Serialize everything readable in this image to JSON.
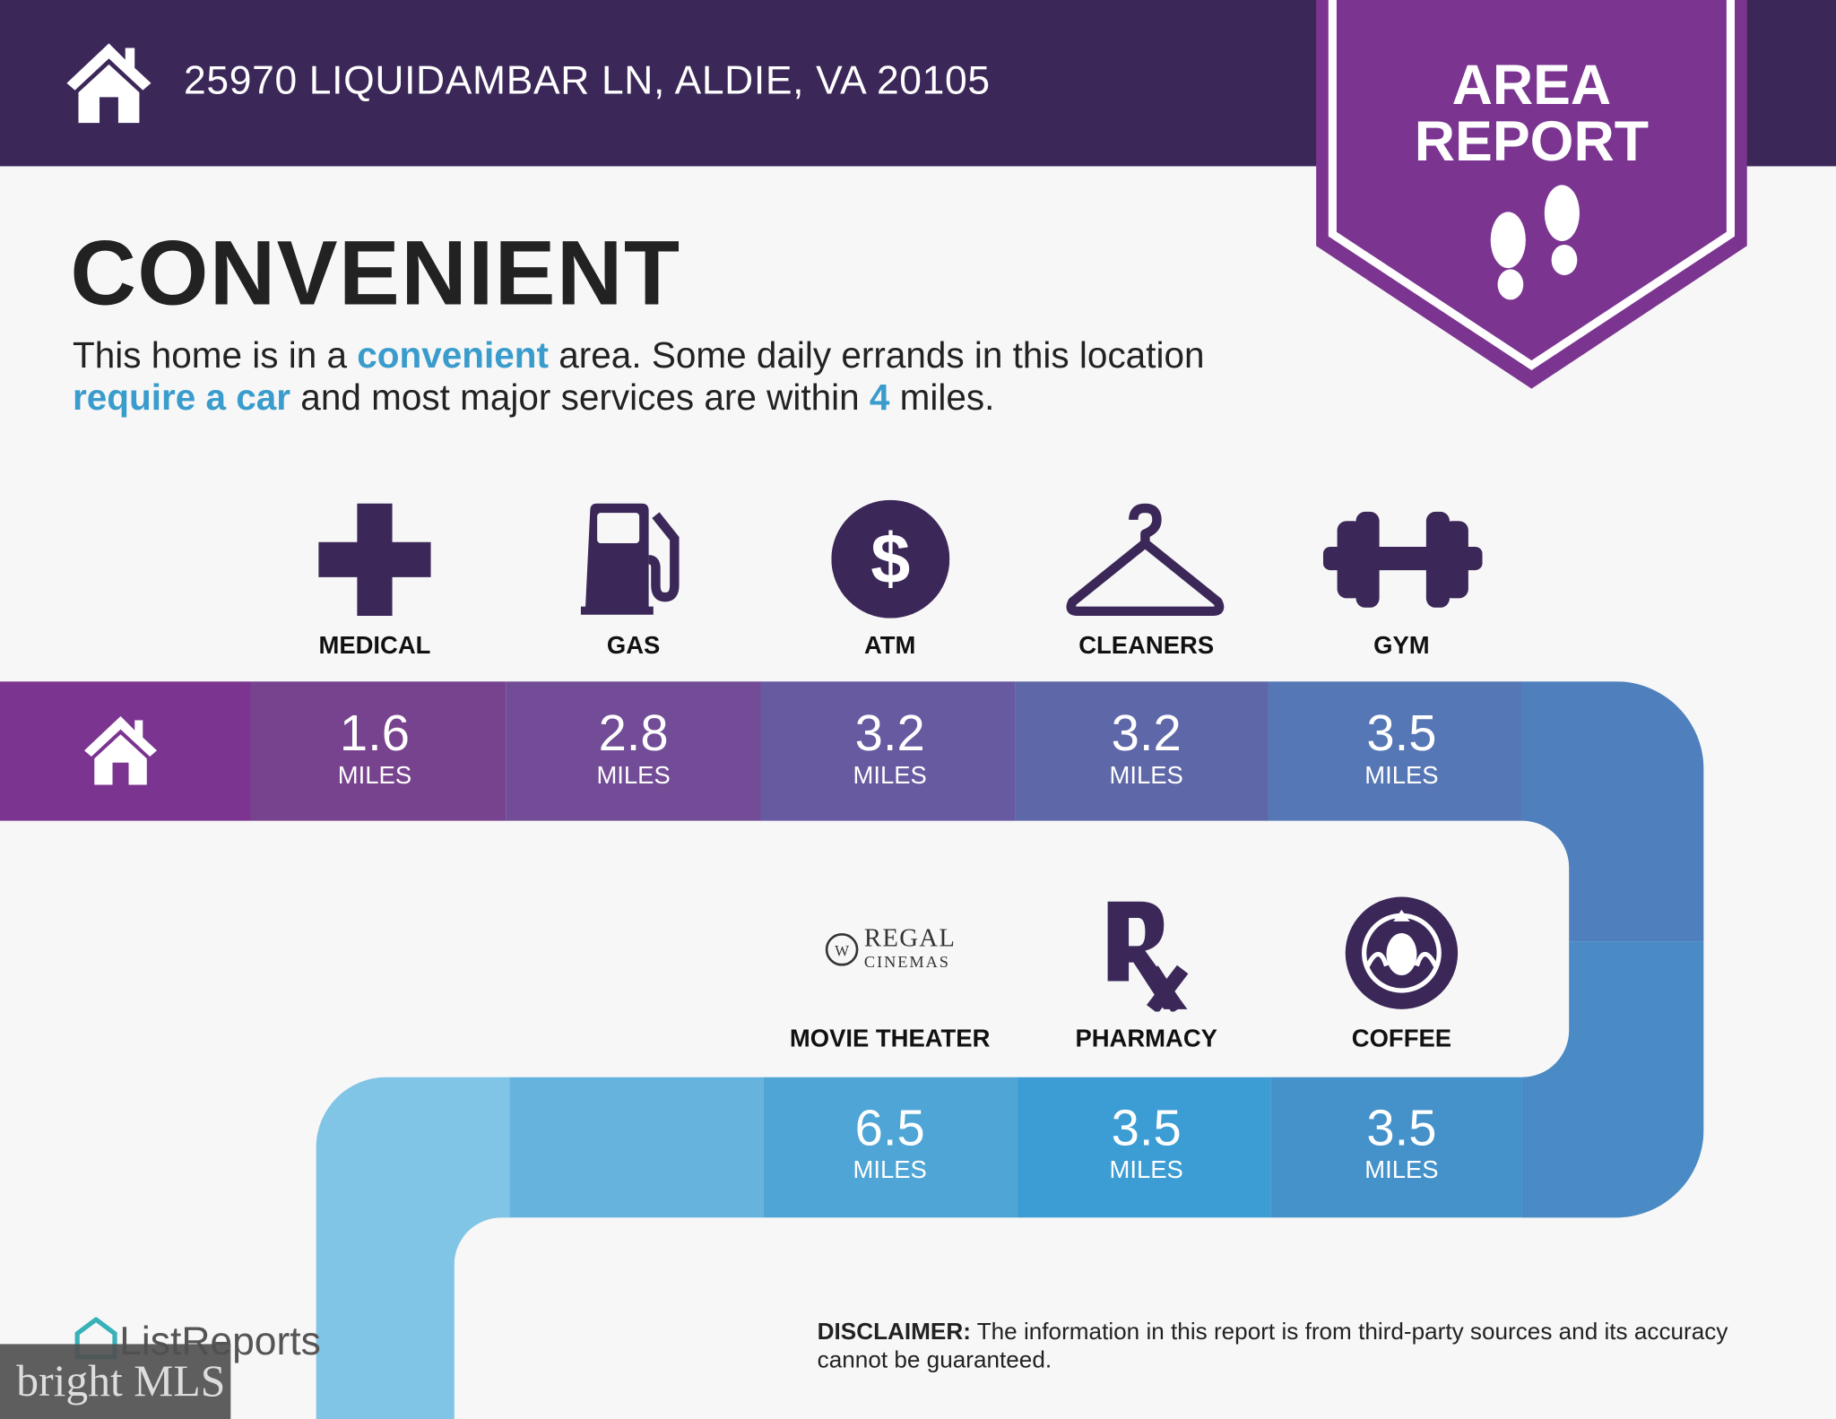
{
  "header": {
    "address": "25970 LIQUIDAMBAR LN, ALDIE, VA 20105",
    "home_icon": "house-icon"
  },
  "ribbon": {
    "line1": "AREA",
    "line2": "REPORT",
    "icon": "footprints-icon",
    "color": "#7b3591"
  },
  "main": {
    "title": "CONVENIENT",
    "desc": {
      "p1": "This home is in a ",
      "h1": "convenient",
      "p2": " area. Some daily errands in this location ",
      "h2": "require a car",
      "p3": " and most major services are within ",
      "h3": "4",
      "p4": " miles."
    }
  },
  "services_top": [
    {
      "label": "MEDICAL",
      "value": "1.6",
      "unit": "MILES",
      "icon": "medical-cross-icon",
      "color": "#77438f"
    },
    {
      "label": "GAS",
      "value": "2.8",
      "unit": "MILES",
      "icon": "gas-pump-icon",
      "color": "#724c97"
    },
    {
      "label": "ATM",
      "value": "3.2",
      "unit": "MILES",
      "icon": "dollar-icon",
      "color": "#675aa0"
    },
    {
      "label": "CLEANERS",
      "value": "3.2",
      "unit": "MILES",
      "icon": "hanger-icon",
      "color": "#5e68a9"
    },
    {
      "label": "GYM",
      "value": "3.5",
      "unit": "MILES",
      "icon": "dumbbell-icon",
      "color": "#5677b5"
    }
  ],
  "services_bottom": [
    {
      "label": "MOVIE THEATER",
      "value": "6.5",
      "unit": "MILES",
      "icon": "regal-cinemas-logo",
      "logo_text": "REGAL CINEMAS",
      "color": "#4fa6d6"
    },
    {
      "label": "PHARMACY",
      "value": "3.5",
      "unit": "MILES",
      "icon": "rx-icon",
      "color": "#3c9dd5"
    },
    {
      "label": "COFFEE",
      "value": "3.5",
      "unit": "MILES",
      "icon": "starbucks-logo",
      "color": "#4592cb"
    }
  ],
  "footer": {
    "disclaimer_label": "DISCLAIMER:",
    "disclaimer_text": " The information in this report is from third-party sources and its accuracy cannot be guaranteed.",
    "brand": "ListReports",
    "watermark": "bright MLS"
  }
}
